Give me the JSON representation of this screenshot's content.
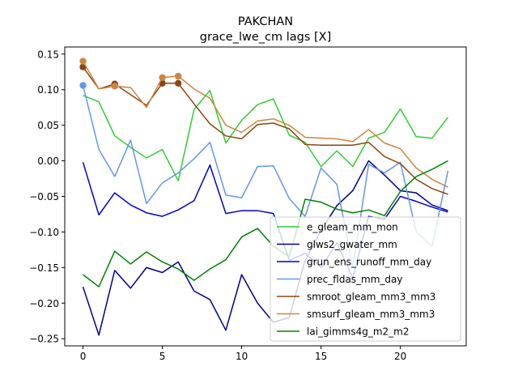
{
  "chart_data": {
    "type": "line",
    "title": "PAKCHAN",
    "subtitle": "grace_lwe_cm lags [X]",
    "xlabel": "",
    "ylabel": "",
    "xlim": [
      -1.15,
      24.15
    ],
    "ylim": [
      -0.26,
      0.16
    ],
    "xticks": [
      0,
      5,
      10,
      15,
      20
    ],
    "yticks": [
      0.15,
      0.1,
      0.05,
      0.0,
      -0.05,
      -0.1,
      -0.15,
      -0.2,
      -0.25
    ],
    "ytick_labels": [
      "0.15",
      "0.10",
      "0.05",
      "0.00",
      "−0.05",
      "−0.10",
      "−0.15",
      "−0.20",
      "−0.25"
    ],
    "grid": false,
    "legend_position": "lower-right",
    "x": [
      0,
      1,
      2,
      3,
      4,
      5,
      6,
      7,
      8,
      9,
      10,
      11,
      12,
      13,
      14,
      15,
      16,
      17,
      18,
      19,
      20,
      21,
      22,
      23
    ],
    "series": [
      {
        "name": "e_gleam_mm_mon",
        "color": "#32cd32",
        "values": [
          0.092,
          0.083,
          0.035,
          0.019,
          0.004,
          0.016,
          -0.028,
          0.072,
          0.099,
          0.025,
          0.057,
          0.079,
          0.087,
          0.036,
          0.026,
          -0.008,
          0.014,
          -0.008,
          0.032,
          0.04,
          0.073,
          0.034,
          0.032,
          0.061
        ],
        "markers": []
      },
      {
        "name": "glws2_gwater_mm",
        "color": "#00008b",
        "values": [
          -0.177,
          -0.245,
          -0.154,
          -0.179,
          -0.15,
          -0.157,
          -0.142,
          -0.183,
          -0.195,
          -0.238,
          -0.16,
          -0.2,
          -0.227,
          -0.22,
          -0.14,
          -0.098,
          -0.063,
          -0.042,
          0.0,
          -0.02,
          -0.042,
          -0.045,
          -0.062,
          -0.07
        ],
        "markers": []
      },
      {
        "name": "grun_ens_runoff_mm_day",
        "color": "#0000cd",
        "values": [
          -0.002,
          -0.076,
          -0.045,
          -0.062,
          -0.073,
          -0.078,
          -0.069,
          -0.056,
          -0.006,
          -0.074,
          -0.07,
          -0.07,
          -0.074,
          -0.14,
          -0.13,
          -0.15,
          -0.115,
          -0.165,
          -0.078,
          -0.082,
          -0.05,
          -0.057,
          -0.065,
          -0.072
        ],
        "markers": []
      },
      {
        "name": "prec_fldas_mm_day",
        "color": "#6495ed",
        "values": [
          0.106,
          0.016,
          -0.022,
          0.029,
          -0.06,
          -0.031,
          -0.017,
          0.003,
          0.026,
          -0.048,
          -0.052,
          -0.008,
          -0.007,
          -0.053,
          -0.078,
          -0.01,
          -0.033,
          -0.15,
          -0.005,
          -0.017,
          -0.002,
          -0.1,
          -0.12,
          -0.014
        ],
        "markers": [
          0
        ]
      },
      {
        "name": "smroot_gleam_mm3_mm3",
        "color": "#8b4513",
        "values": [
          0.132,
          0.101,
          0.108,
          0.093,
          0.078,
          0.109,
          0.109,
          0.08,
          0.052,
          0.035,
          0.031,
          0.051,
          0.053,
          0.045,
          0.023,
          0.022,
          0.022,
          0.022,
          0.026,
          0.006,
          -0.004,
          -0.026,
          -0.039,
          -0.047
        ],
        "markers": [
          0,
          2,
          5,
          6
        ]
      },
      {
        "name": "smsurf_gleam_mm3_mm3",
        "color": "#cd853f",
        "values": [
          0.14,
          0.101,
          0.105,
          0.103,
          0.075,
          0.117,
          0.119,
          0.101,
          0.088,
          0.05,
          0.04,
          0.056,
          0.059,
          0.05,
          0.033,
          0.032,
          0.031,
          0.027,
          0.044,
          0.025,
          0.017,
          -0.01,
          -0.026,
          -0.037
        ],
        "markers": [
          0,
          2,
          5,
          6
        ]
      },
      {
        "name": "lai_gimms4g_m2_m2",
        "color": "#008000",
        "values": [
          -0.16,
          -0.177,
          -0.127,
          -0.145,
          -0.128,
          -0.142,
          -0.152,
          -0.168,
          -0.152,
          -0.139,
          -0.107,
          -0.095,
          -0.12,
          -0.135,
          -0.054,
          -0.058,
          -0.068,
          -0.073,
          -0.069,
          -0.077,
          -0.043,
          -0.022,
          -0.012,
          0.0
        ],
        "markers": []
      }
    ]
  }
}
